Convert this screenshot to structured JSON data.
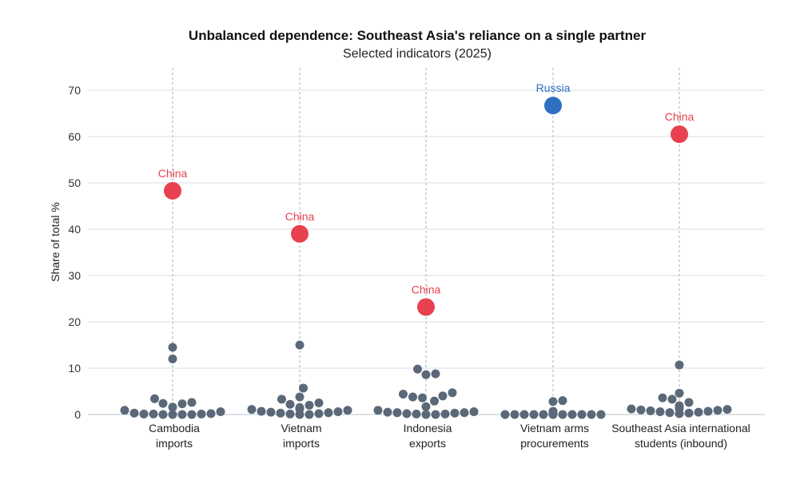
{
  "chart_data": {
    "type": "scatter",
    "title": "Unbalanced dependence: Southeast Asia's reliance on a single partner",
    "subtitle": "Selected indicators (2025)",
    "ylabel": "Share of total %",
    "ylim": [
      0,
      70
    ],
    "yticks": [
      0,
      10,
      20,
      30,
      40,
      50,
      60,
      70
    ],
    "grid": true,
    "colors": {
      "leader_china": "#e8414f",
      "leader_russia": "#2f6fc0",
      "others": "#5b6878",
      "grid": "#d7dee6",
      "guide": "#9fb1c4"
    },
    "categories": [
      {
        "label": [
          "Cambodia",
          "imports"
        ],
        "leader": {
          "name": "China",
          "value": 48.3,
          "color": "#e8414f"
        },
        "others": [
          14.5,
          12.0,
          3.4,
          2.6,
          2.4,
          2.3,
          1.6,
          0.9,
          0.6,
          0.3,
          0.2,
          0.1,
          0.1,
          0.1,
          0.0,
          0.0,
          0.0,
          0.0
        ]
      },
      {
        "label": [
          "Vietnam",
          "imports"
        ],
        "leader": {
          "name": "China",
          "value": 39.0,
          "color": "#e8414f"
        },
        "others": [
          15.0,
          5.7,
          3.8,
          3.3,
          2.5,
          2.2,
          2.0,
          1.5,
          1.2,
          1.1,
          0.9,
          0.7,
          0.6,
          0.5,
          0.4,
          0.3,
          0.2,
          0.1,
          0.0,
          0.0
        ]
      },
      {
        "label": [
          "Indonesia",
          "exports"
        ],
        "leader": {
          "name": "China",
          "value": 23.2,
          "color": "#e8414f"
        },
        "others": [
          9.8,
          8.8,
          8.6,
          4.7,
          4.4,
          4.0,
          3.8,
          3.6,
          2.9,
          1.7,
          0.9,
          0.6,
          0.5,
          0.4,
          0.4,
          0.3,
          0.2,
          0.1,
          0.1,
          0.0,
          0.0
        ]
      },
      {
        "label": [
          "Vietnam arms",
          "procurements"
        ],
        "leader": {
          "name": "Russia",
          "value": 66.7,
          "color": "#2f6fc0"
        },
        "others": [
          3.0,
          2.8,
          0.7,
          0.2,
          0.1,
          0.1,
          0.1,
          0.1,
          0.0,
          0.0,
          0.0,
          0.0,
          0.0,
          0.0,
          0.0,
          0.0,
          0.0,
          0.0,
          0.0
        ]
      },
      {
        "label": [
          "Southeast Asia international",
          "students (inbound)"
        ],
        "leader": {
          "name": "China",
          "value": 60.5,
          "color": "#e8414f"
        },
        "others": [
          10.7,
          4.6,
          3.6,
          3.3,
          2.6,
          1.9,
          1.6,
          1.4,
          1.3,
          1.2,
          1.1,
          1.0,
          0.9,
          0.8,
          0.7,
          0.6,
          0.5,
          0.4,
          0.3,
          0.2
        ]
      }
    ]
  }
}
